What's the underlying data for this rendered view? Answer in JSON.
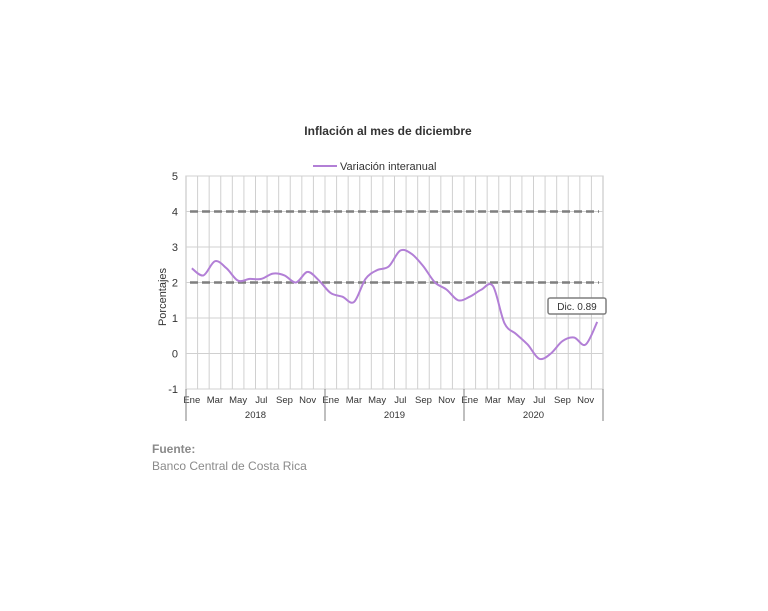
{
  "chart_data": {
    "type": "line",
    "title": "Inflación al mes de diciembre",
    "ylabel": "Porcentajes",
    "xlabel": "",
    "ylim": [
      -1,
      5
    ],
    "yticks": [
      -1,
      0,
      1,
      2,
      3,
      4,
      5
    ],
    "grid": true,
    "legend": "top-center",
    "month_tick_labels": [
      "Ene",
      "Mar",
      "May",
      "Jul",
      "Sep",
      "Nov",
      "Ene",
      "Mar",
      "May",
      "Jul",
      "Sep",
      "Nov",
      "Ene",
      "Mar",
      "May",
      "Jul",
      "Sep",
      "Nov"
    ],
    "years": [
      "2018",
      "2019",
      "2020"
    ],
    "x": [
      "2018-01",
      "2018-02",
      "2018-03",
      "2018-04",
      "2018-05",
      "2018-06",
      "2018-07",
      "2018-08",
      "2018-09",
      "2018-10",
      "2018-11",
      "2018-12",
      "2019-01",
      "2019-02",
      "2019-03",
      "2019-04",
      "2019-05",
      "2019-06",
      "2019-07",
      "2019-08",
      "2019-09",
      "2019-10",
      "2019-11",
      "2019-12",
      "2020-01",
      "2020-02",
      "2020-03",
      "2020-04",
      "2020-05",
      "2020-06",
      "2020-07",
      "2020-08",
      "2020-09",
      "2020-10",
      "2020-11",
      "2020-12"
    ],
    "series": [
      {
        "name": "Variación interanual",
        "color": "#b27fd6",
        "values": [
          2.4,
          2.2,
          2.6,
          2.4,
          2.05,
          2.1,
          2.1,
          2.25,
          2.2,
          2.0,
          2.3,
          2.05,
          1.7,
          1.6,
          1.45,
          2.1,
          2.35,
          2.45,
          2.9,
          2.8,
          2.45,
          2.0,
          1.8,
          1.5,
          1.6,
          1.8,
          1.9,
          0.85,
          0.55,
          0.25,
          -0.15,
          0.0,
          0.35,
          0.45,
          0.25,
          0.89
        ]
      }
    ],
    "reference_lines": [
      2,
      4
    ],
    "reference_line_color": "#7f7f7f",
    "annotation": "Dic. 0.89"
  },
  "source": {
    "label": "Fuente:",
    "text": "Banco Central de Costa Rica"
  }
}
